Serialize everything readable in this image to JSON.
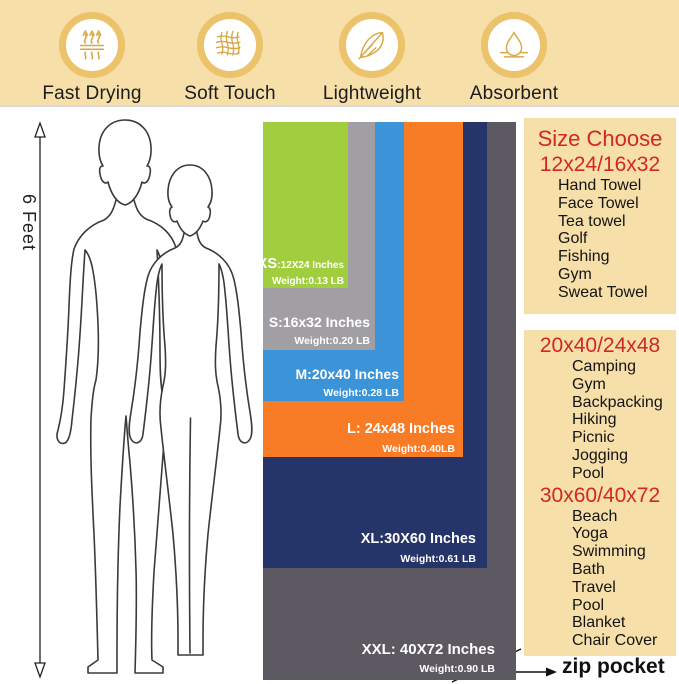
{
  "features": [
    {
      "label": "Fast Drying",
      "icon": "steam-arrows-icon"
    },
    {
      "label": "Soft Touch",
      "icon": "fabric-weave-icon"
    },
    {
      "label": "Lightweight",
      "icon": "feather-icon"
    },
    {
      "label": "Absorbent",
      "icon": "water-drop-icon"
    }
  ],
  "height_scale": {
    "label": "6 Feet"
  },
  "towel_sizes": [
    {
      "code": "XS",
      "dims": ":12X24 Inches",
      "weight": "Weight:0.13 LB",
      "color": "#a0ce3f"
    },
    {
      "code": "S",
      "dims": ":16x32 Inches",
      "weight": "Weight:0.20 LB",
      "color": "#a29fa4"
    },
    {
      "code": "M",
      "dims": ":20x40 Inches",
      "weight": "Weight:0.28 LB",
      "color": "#3b93d8"
    },
    {
      "code": "L",
      "dims": ": 24x48 Inches",
      "weight": "Weight:0.40LB",
      "color": "#f87b26"
    },
    {
      "code": "XL",
      "dims": ":30X60 Inches",
      "weight": "Weight:0.61 LB",
      "color": "#253469"
    },
    {
      "code": "XXL",
      "dims": ": 40X72 Inches",
      "weight": "Weight:0.90 LB",
      "color": "#5d5963"
    }
  ],
  "size_guide": {
    "title": "Size Choose",
    "heading_color": "#d2281e",
    "sections": [
      {
        "heading": "12x24/16x32",
        "items": [
          "Hand Towel",
          "Face Towel",
          "Tea towel",
          "Golf",
          "Fishing",
          "Gym",
          "Sweat Towel"
        ]
      },
      {
        "heading": "20x40/24x48",
        "items": [
          "Camping",
          "Gym",
          "Backpacking",
          "Hiking",
          "Picnic",
          "Jogging",
          "Pool"
        ]
      },
      {
        "heading": "30x60/40x72",
        "items": [
          "Beach",
          "Yoga",
          "Swimming",
          "Bath",
          "Travel",
          "Pool",
          "Blanket",
          "Chair Cover"
        ]
      }
    ]
  },
  "zip_pocket": {
    "label": "zip pocket"
  },
  "colors": {
    "banner_bg": "#f6dfa8",
    "panel_bg": "#f6dfa8",
    "icon_ring": "#ecc26a",
    "icon_gold": "#d8a845"
  }
}
